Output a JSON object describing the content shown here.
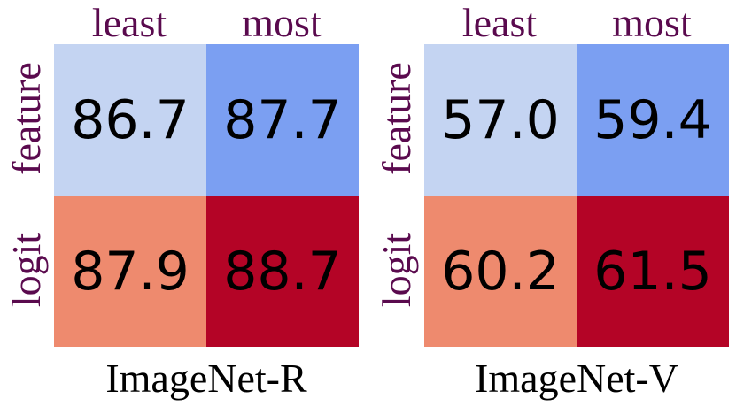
{
  "chart_data": [
    {
      "type": "heatmap",
      "title": "ImageNet-R",
      "columns": [
        "least",
        "most"
      ],
      "rows": [
        "feature",
        "logit"
      ],
      "values": [
        [
          86.7,
          87.7
        ],
        [
          87.9,
          88.7
        ]
      ],
      "value_labels": [
        [
          "86.7",
          "87.7"
        ],
        [
          "87.9",
          "88.7"
        ]
      ],
      "cell_colors": [
        [
          "#c4d4f2",
          "#7b9ff2"
        ],
        [
          "#ee8a6e",
          "#b40426"
        ]
      ]
    },
    {
      "type": "heatmap",
      "title": "ImageNet-V",
      "columns": [
        "least",
        "most"
      ],
      "rows": [
        "feature",
        "logit"
      ],
      "values": [
        [
          57.0,
          59.4
        ],
        [
          60.2,
          61.5
        ]
      ],
      "value_labels": [
        [
          "57.0",
          "59.4"
        ],
        [
          "60.2",
          "61.5"
        ]
      ],
      "cell_colors": [
        [
          "#c4d4f2",
          "#7b9ff2"
        ],
        [
          "#ee8a6e",
          "#b40426"
        ]
      ]
    }
  ],
  "colors": {
    "label_text": "#5a0a4e",
    "value_text": "#000000",
    "title_text": "#000000"
  }
}
